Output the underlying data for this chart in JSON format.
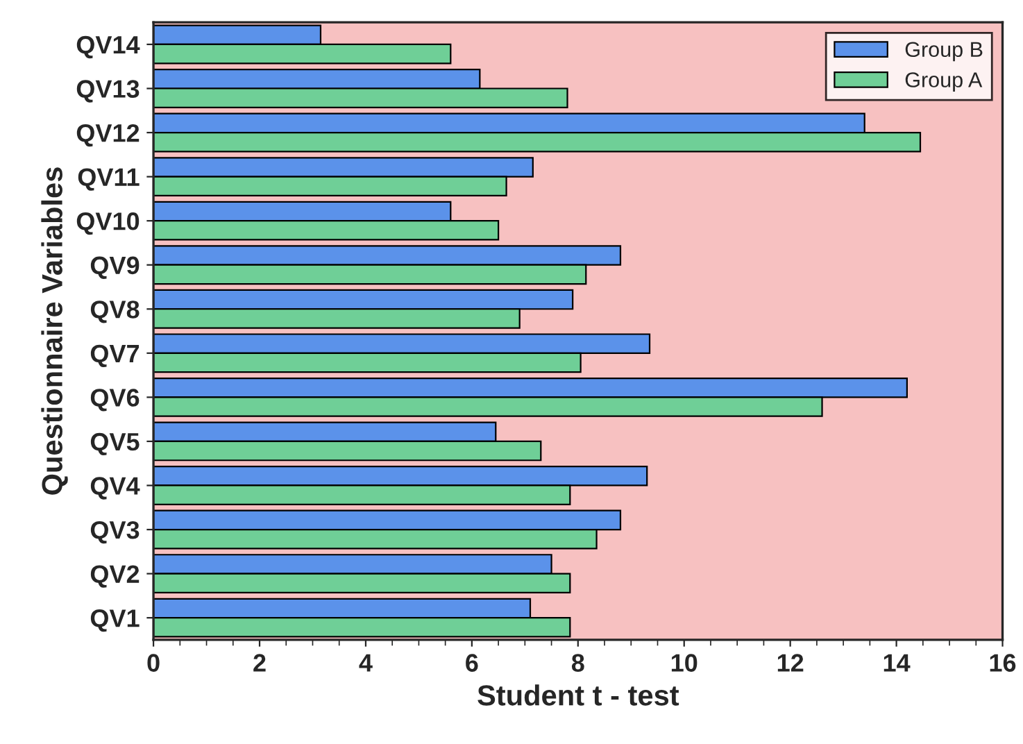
{
  "chart_data": {
    "type": "bar",
    "orientation": "horizontal",
    "xlabel": "Student t - test",
    "ylabel": "Questionnaire Variables",
    "categories": [
      "QV14",
      "QV13",
      "QV12",
      "QV11",
      "QV10",
      "QV9",
      "QV8",
      "QV7",
      "QV6",
      "QV5",
      "QV4",
      "QV3",
      "QV2",
      "QV1"
    ],
    "series": [
      {
        "name": "Group B",
        "color": "#5b92ea",
        "values": [
          3.15,
          6.15,
          13.4,
          7.15,
          5.6,
          8.8,
          7.9,
          9.35,
          14.2,
          6.45,
          9.3,
          8.8,
          7.5,
          7.1
        ]
      },
      {
        "name": "Group A",
        "color": "#6fcf97",
        "values": [
          5.6,
          7.8,
          14.45,
          6.65,
          6.5,
          8.15,
          6.9,
          8.05,
          12.6,
          7.3,
          7.85,
          8.35,
          7.85,
          7.85
        ]
      }
    ],
    "xlim": [
      0,
      16
    ],
    "xticks": [
      0,
      2,
      4,
      6,
      8,
      10,
      12,
      14,
      16
    ],
    "legend": "top right",
    "grid": false
  }
}
